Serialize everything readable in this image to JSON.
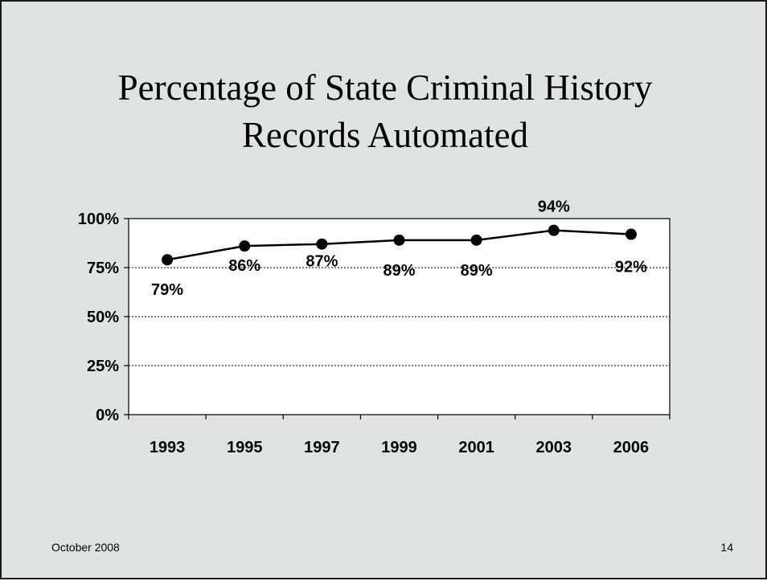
{
  "slide": {
    "title_lines": [
      "Percentage of State Criminal History",
      "Records Automated"
    ],
    "footer_date": "October 2008",
    "slide_number": "14"
  },
  "chart_data": {
    "type": "line",
    "title": "",
    "xlabel": "",
    "ylabel": "",
    "categories": [
      "1993",
      "1995",
      "1997",
      "1999",
      "2001",
      "2003",
      "2006"
    ],
    "series": [
      {
        "values": [
          79,
          86,
          87,
          89,
          89,
          94,
          92
        ]
      }
    ],
    "data_labels": [
      "79%",
      "86%",
      "87%",
      "89%",
      "89%",
      "94%",
      "92%"
    ],
    "ylim": [
      0,
      100
    ],
    "yticks": [
      0,
      25,
      50,
      75,
      100
    ],
    "ytick_labels": [
      "0%",
      "25%",
      "50%",
      "75%",
      "100%"
    ],
    "grid": "horizontal dotted",
    "legend": "none",
    "colors": {
      "line": "#000000",
      "marker": "#000000",
      "plot_bg": "#ffffff",
      "slide_bg": "#dfe3e4"
    }
  }
}
